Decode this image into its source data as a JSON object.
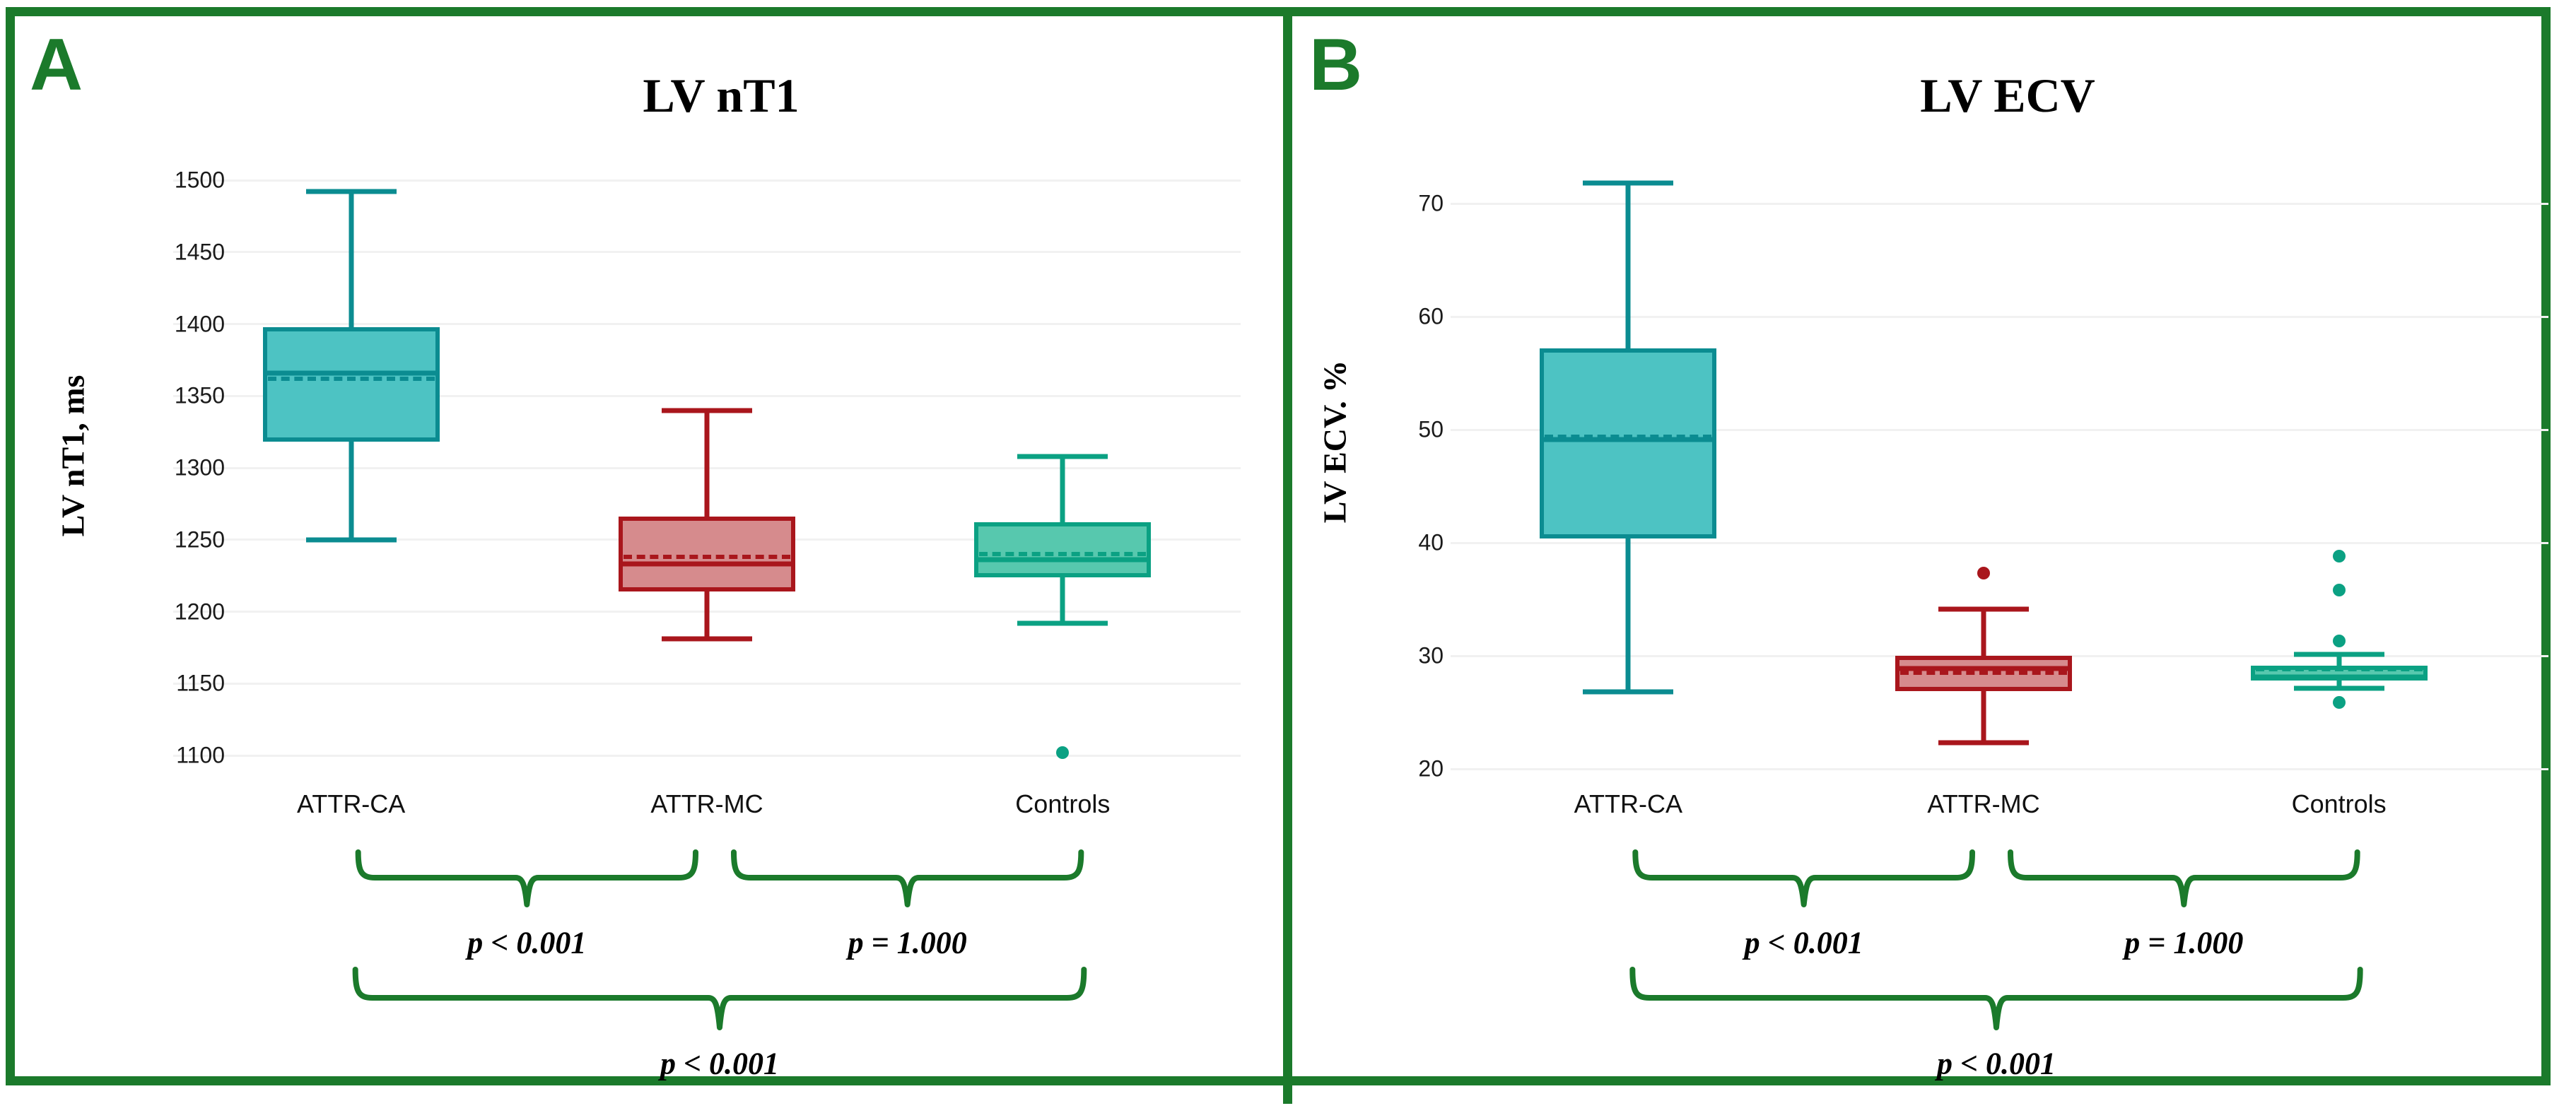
{
  "figure": {
    "accent_green": "#1B7A2B",
    "background": "#ffffff",
    "gridline_color": "#f1f1f1"
  },
  "chart_data": [
    {
      "type": "boxplot",
      "panel_label": "A",
      "title": "LV nT1",
      "ylabel": "LV nT1, ms",
      "ylim": [
        1100,
        1500
      ],
      "yticks": [
        1500,
        1450,
        1400,
        1350,
        1300,
        1250,
        1200,
        1150,
        1100
      ],
      "grid": "horizontal-major",
      "categories": [
        "ATTR-CA",
        "ATTR-MC",
        "Controls"
      ],
      "groups": [
        {
          "name": "ATTR-CA",
          "fill": "#4DC3C3",
          "stroke": "#0B8C91",
          "whisker_low": 1250,
          "q1": 1318,
          "median": 1366,
          "mean": 1362,
          "q3": 1398,
          "whisker_high": 1492,
          "outliers": []
        },
        {
          "name": "ATTR-MC",
          "fill": "#D68B8D",
          "stroke": "#A9161C",
          "whisker_low": 1181,
          "q1": 1214,
          "median": 1233,
          "mean": 1238,
          "q3": 1266,
          "whisker_high": 1340,
          "outliers": []
        },
        {
          "name": "Controls",
          "fill": "#57C8AE",
          "stroke": "#0BA183",
          "whisker_low": 1192,
          "q1": 1224,
          "median": 1236,
          "mean": 1240,
          "q3": 1262,
          "whisker_high": 1308,
          "outliers": [
            1102
          ]
        }
      ],
      "comparisons": [
        {
          "between": [
            "ATTR-CA",
            "ATTR-MC"
          ],
          "row": 1,
          "p_label": "p < 0.001"
        },
        {
          "between": [
            "ATTR-MC",
            "Controls"
          ],
          "row": 1,
          "p_label": "p = 1.000"
        },
        {
          "between": [
            "ATTR-CA",
            "Controls"
          ],
          "row": 2,
          "p_label": "p < 0.001"
        }
      ]
    },
    {
      "type": "boxplot",
      "panel_label": "B",
      "title": "LV ECV",
      "ylabel": "LV ECV. %",
      "ylim": [
        20,
        70
      ],
      "yticks": [
        70,
        60,
        50,
        40,
        30,
        20
      ],
      "grid": "horizontal-major",
      "categories": [
        "ATTR-CA",
        "ATTR-MC",
        "Controls"
      ],
      "groups": [
        {
          "name": "ATTR-CA",
          "fill": "#4DC3C3",
          "stroke": "#0B8C91",
          "whisker_low": 26.8,
          "q1": 40.4,
          "median": 49.1,
          "mean": 49.4,
          "q3": 57.2,
          "whisker_high": 71.8,
          "outliers": []
        },
        {
          "name": "ATTR-MC",
          "fill": "#D68B8D",
          "stroke": "#A9161C",
          "whisker_low": 22.3,
          "q1": 26.9,
          "median": 28.9,
          "mean": 28.5,
          "q3": 30.0,
          "whisker_high": 34.1,
          "outliers": [
            37.3
          ]
        },
        {
          "name": "Controls",
          "fill": "#57C8AE",
          "stroke": "#0BA183",
          "whisker_low": 27.1,
          "q1": 27.8,
          "median": 28.1,
          "mean": 28.8,
          "q3": 29.1,
          "whisker_high": 30.1,
          "outliers": [
            38.8,
            35.8,
            31.3,
            25.9
          ]
        }
      ],
      "comparisons": [
        {
          "between": [
            "ATTR-CA",
            "ATTR-MC"
          ],
          "row": 1,
          "p_label": "p < 0.001"
        },
        {
          "between": [
            "ATTR-MC",
            "Controls"
          ],
          "row": 1,
          "p_label": "p = 1.000"
        },
        {
          "between": [
            "ATTR-CA",
            "Controls"
          ],
          "row": 2,
          "p_label": "p < 0.001"
        }
      ]
    }
  ]
}
